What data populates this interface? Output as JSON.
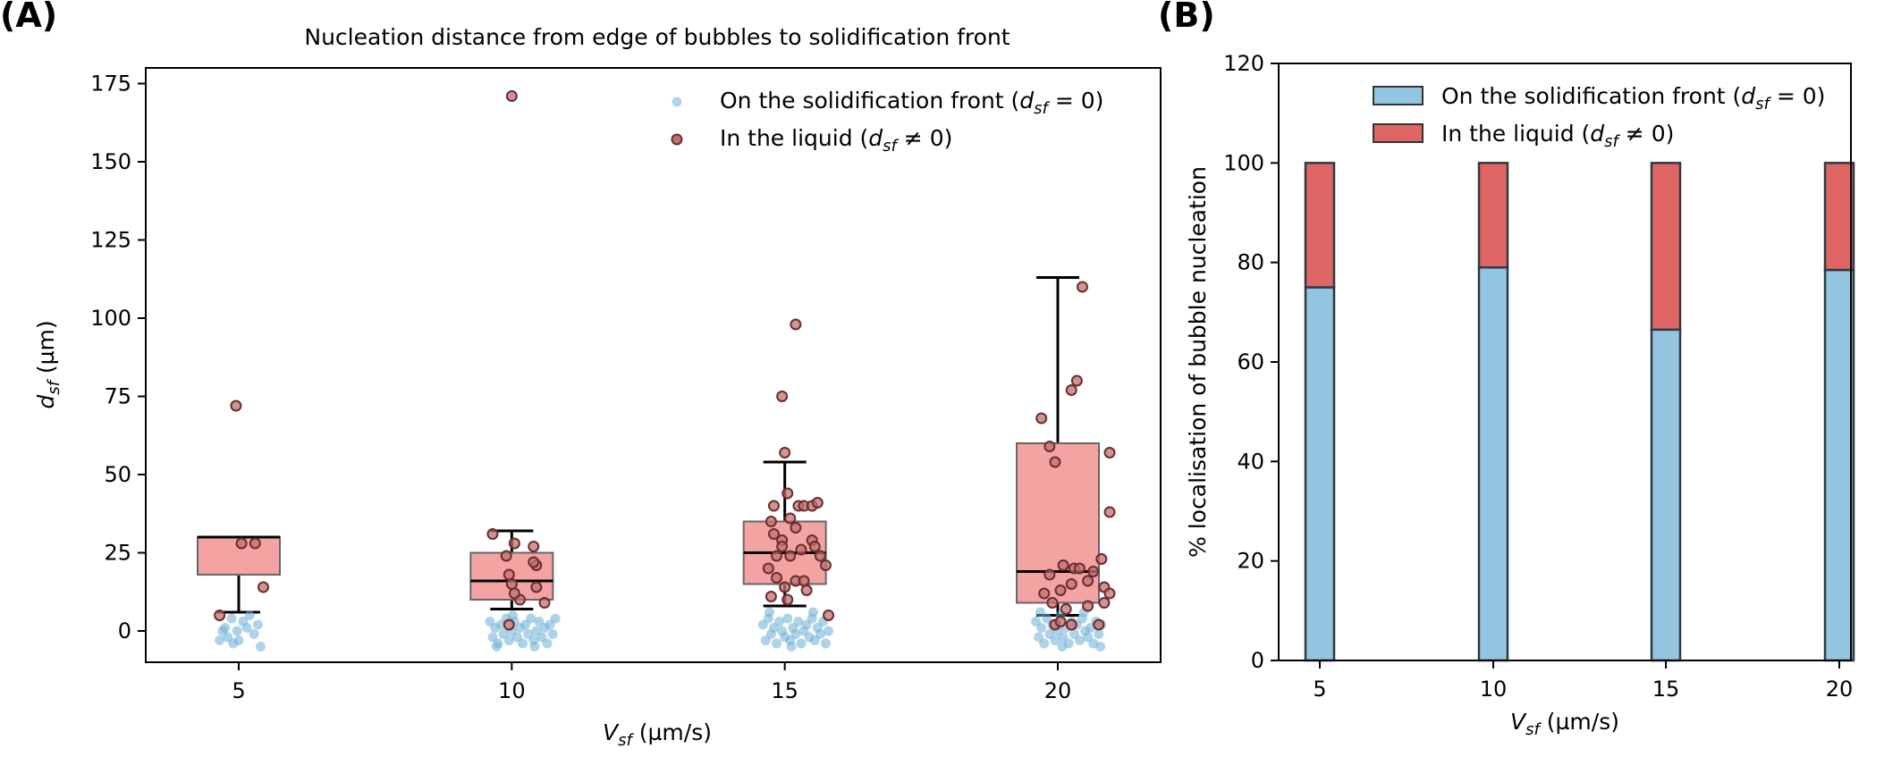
{
  "chart_data": [
    {
      "panel_label": "(A)",
      "type": "box+scatter",
      "title": "Nucleation distance from edge of bubbles to solidification front",
      "xlabel": {
        "var": "V",
        "sub": "sf",
        "unit": " (µm/s)"
      },
      "ylabel": {
        "var": "d",
        "sub": "sf",
        "unit": " (µm)"
      },
      "ylim": [
        -10,
        180
      ],
      "yticks": [
        0,
        25,
        50,
        75,
        100,
        125,
        150,
        175
      ],
      "categories": [
        "5",
        "10",
        "15",
        "20"
      ],
      "legend": {
        "position": "top-right",
        "entries": [
          {
            "text": "On the solidification front (",
            "var": "d",
            "sub": "sf",
            "rel": " = 0)",
            "color": "#6baed6"
          },
          {
            "text": "In the liquid (",
            "var": "d",
            "sub": "sf",
            "rel": " ≠ 0)",
            "color": "#8b3a3a"
          }
        ]
      },
      "boxes": [
        {
          "category": "5",
          "whisker_low": 6,
          "q1": 18,
          "median": 30,
          "q3": 30,
          "whisker_high": 30
        },
        {
          "category": "10",
          "whisker_low": 7,
          "q1": 10,
          "median": 16,
          "q3": 25,
          "whisker_high": 32
        },
        {
          "category": "15",
          "whisker_low": 8,
          "q1": 15,
          "median": 25,
          "q3": 35,
          "whisker_high": 54
        },
        {
          "category": "20",
          "whisker_low": 5,
          "q1": 9,
          "median": 19,
          "q3": 60,
          "whisker_high": 113
        }
      ],
      "series": [
        {
          "name": "On the solidification front (dsf = 0)",
          "color": "#6baed6",
          "points": [
            {
              "x": 4.65,
              "y": -3
            },
            {
              "x": 4.75,
              "y": 1
            },
            {
              "x": 4.8,
              "y": -2
            },
            {
              "x": 4.87,
              "y": 4
            },
            {
              "x": 4.9,
              "y": -4
            },
            {
              "x": 4.97,
              "y": 0
            },
            {
              "x": 5.08,
              "y": 3
            },
            {
              "x": 5.15,
              "y": 1
            },
            {
              "x": 5.2,
              "y": 5
            },
            {
              "x": 5.28,
              "y": -1
            },
            {
              "x": 5.35,
              "y": 2
            },
            {
              "x": 5.4,
              "y": -5
            },
            {
              "x": 4.7,
              "y": 0
            },
            {
              "x": 5.0,
              "y": -3
            },
            {
              "x": 9.6,
              "y": 3
            },
            {
              "x": 9.65,
              "y": -2
            },
            {
              "x": 9.7,
              "y": 1
            },
            {
              "x": 9.75,
              "y": -4
            },
            {
              "x": 9.8,
              "y": 2
            },
            {
              "x": 9.85,
              "y": -1
            },
            {
              "x": 9.9,
              "y": 4
            },
            {
              "x": 9.95,
              "y": -3
            },
            {
              "x": 10.0,
              "y": 0
            },
            {
              "x": 10.05,
              "y": 3
            },
            {
              "x": 10.1,
              "y": -2
            },
            {
              "x": 10.15,
              "y": 1
            },
            {
              "x": 10.2,
              "y": -4
            },
            {
              "x": 10.25,
              "y": 2
            },
            {
              "x": 10.3,
              "y": -1
            },
            {
              "x": 10.35,
              "y": 4
            },
            {
              "x": 10.4,
              "y": -3
            },
            {
              "x": 10.45,
              "y": 0
            },
            {
              "x": 10.5,
              "y": 3
            },
            {
              "x": 10.55,
              "y": -2
            },
            {
              "x": 10.6,
              "y": 1
            },
            {
              "x": 10.65,
              "y": -4
            },
            {
              "x": 10.7,
              "y": 2
            },
            {
              "x": 10.75,
              "y": -1
            },
            {
              "x": 10.8,
              "y": 4
            },
            {
              "x": 9.72,
              "y": -5
            },
            {
              "x": 10.02,
              "y": 5
            },
            {
              "x": 10.42,
              "y": -5
            },
            {
              "x": 14.6,
              "y": 2
            },
            {
              "x": 14.65,
              "y": -3
            },
            {
              "x": 14.7,
              "y": 4
            },
            {
              "x": 14.75,
              "y": -1
            },
            {
              "x": 14.8,
              "y": 1
            },
            {
              "x": 14.85,
              "y": -4
            },
            {
              "x": 14.9,
              "y": 3
            },
            {
              "x": 14.95,
              "y": 0
            },
            {
              "x": 15.0,
              "y": -2
            },
            {
              "x": 15.05,
              "y": 4
            },
            {
              "x": 15.1,
              "y": -3
            },
            {
              "x": 15.15,
              "y": 1
            },
            {
              "x": 15.2,
              "y": -1
            },
            {
              "x": 15.25,
              "y": 3
            },
            {
              "x": 15.3,
              "y": -4
            },
            {
              "x": 15.35,
              "y": 0
            },
            {
              "x": 15.4,
              "y": 2
            },
            {
              "x": 15.45,
              "y": -2
            },
            {
              "x": 15.5,
              "y": 4
            },
            {
              "x": 15.55,
              "y": -3
            },
            {
              "x": 15.6,
              "y": 1
            },
            {
              "x": 15.65,
              "y": -1
            },
            {
              "x": 15.7,
              "y": 3
            },
            {
              "x": 15.75,
              "y": -4
            },
            {
              "x": 15.8,
              "y": 0
            },
            {
              "x": 14.72,
              "y": 6
            },
            {
              "x": 15.12,
              "y": -5
            },
            {
              "x": 15.52,
              "y": 6
            },
            {
              "x": 19.6,
              "y": 3
            },
            {
              "x": 19.65,
              "y": -2
            },
            {
              "x": 19.7,
              "y": 1
            },
            {
              "x": 19.75,
              "y": -4
            },
            {
              "x": 19.8,
              "y": 4
            },
            {
              "x": 19.85,
              "y": -1
            },
            {
              "x": 19.9,
              "y": 2
            },
            {
              "x": 19.95,
              "y": -3
            },
            {
              "x": 20.0,
              "y": 0
            },
            {
              "x": 20.05,
              "y": 5
            },
            {
              "x": 20.1,
              "y": -2
            },
            {
              "x": 20.15,
              "y": 1
            },
            {
              "x": 20.2,
              "y": -4
            },
            {
              "x": 20.25,
              "y": 3
            },
            {
              "x": 20.3,
              "y": -1
            },
            {
              "x": 20.35,
              "y": 2
            },
            {
              "x": 20.4,
              "y": -3
            },
            {
              "x": 20.45,
              "y": 4
            },
            {
              "x": 20.5,
              "y": 0
            },
            {
              "x": 20.55,
              "y": -2
            },
            {
              "x": 20.6,
              "y": 1
            },
            {
              "x": 20.65,
              "y": -4
            },
            {
              "x": 20.7,
              "y": 3
            },
            {
              "x": 20.75,
              "y": -1
            },
            {
              "x": 20.8,
              "y": 2
            },
            {
              "x": 19.68,
              "y": 6
            },
            {
              "x": 20.08,
              "y": -5
            },
            {
              "x": 20.48,
              "y": 6
            },
            {
              "x": 20.78,
              "y": -5
            }
          ]
        },
        {
          "name": "In the liquid (dsf ≠ 0)",
          "color": "#8b3a3a",
          "points": [
            {
              "x": 4.95,
              "y": 72
            },
            {
              "x": 5.3,
              "y": 28
            },
            {
              "x": 5.05,
              "y": 28
            },
            {
              "x": 5.45,
              "y": 14
            },
            {
              "x": 4.65,
              "y": 5
            },
            {
              "x": 10.0,
              "y": 171
            },
            {
              "x": 9.65,
              "y": 31
            },
            {
              "x": 9.9,
              "y": 24
            },
            {
              "x": 10.05,
              "y": 28
            },
            {
              "x": 10.4,
              "y": 27
            },
            {
              "x": 10.45,
              "y": 21
            },
            {
              "x": 9.95,
              "y": 18
            },
            {
              "x": 10.4,
              "y": 22
            },
            {
              "x": 10.0,
              "y": 15
            },
            {
              "x": 10.15,
              "y": 10
            },
            {
              "x": 10.05,
              "y": 12
            },
            {
              "x": 10.45,
              "y": 14
            },
            {
              "x": 10.6,
              "y": 9
            },
            {
              "x": 9.95,
              "y": 2
            },
            {
              "x": 15.2,
              "y": 98
            },
            {
              "x": 14.95,
              "y": 75
            },
            {
              "x": 15.0,
              "y": 57
            },
            {
              "x": 14.8,
              "y": 40
            },
            {
              "x": 15.05,
              "y": 44
            },
            {
              "x": 15.25,
              "y": 40
            },
            {
              "x": 15.35,
              "y": 40
            },
            {
              "x": 15.5,
              "y": 40
            },
            {
              "x": 15.6,
              "y": 41
            },
            {
              "x": 14.75,
              "y": 35
            },
            {
              "x": 14.8,
              "y": 31
            },
            {
              "x": 14.95,
              "y": 29
            },
            {
              "x": 15.1,
              "y": 36
            },
            {
              "x": 15.2,
              "y": 33
            },
            {
              "x": 14.85,
              "y": 24
            },
            {
              "x": 14.95,
              "y": 27
            },
            {
              "x": 15.1,
              "y": 24
            },
            {
              "x": 15.3,
              "y": 26
            },
            {
              "x": 15.5,
              "y": 29
            },
            {
              "x": 15.55,
              "y": 27
            },
            {
              "x": 14.7,
              "y": 20
            },
            {
              "x": 14.85,
              "y": 17
            },
            {
              "x": 15.0,
              "y": 14
            },
            {
              "x": 15.2,
              "y": 16
            },
            {
              "x": 15.35,
              "y": 16
            },
            {
              "x": 15.65,
              "y": 24
            },
            {
              "x": 15.75,
              "y": 21
            },
            {
              "x": 14.75,
              "y": 11
            },
            {
              "x": 15.05,
              "y": 10
            },
            {
              "x": 15.4,
              "y": 13
            },
            {
              "x": 15.8,
              "y": 5
            },
            {
              "x": 20.45,
              "y": 110
            },
            {
              "x": 20.35,
              "y": 80
            },
            {
              "x": 20.25,
              "y": 77
            },
            {
              "x": 19.7,
              "y": 68
            },
            {
              "x": 19.85,
              "y": 59
            },
            {
              "x": 19.95,
              "y": 54
            },
            {
              "x": 20.95,
              "y": 57
            },
            {
              "x": 20.95,
              "y": 38
            },
            {
              "x": 20.8,
              "y": 23
            },
            {
              "x": 20.1,
              "y": 21
            },
            {
              "x": 20.3,
              "y": 20
            },
            {
              "x": 20.4,
              "y": 20
            },
            {
              "x": 19.85,
              "y": 18
            },
            {
              "x": 20.25,
              "y": 15
            },
            {
              "x": 20.55,
              "y": 16
            },
            {
              "x": 20.65,
              "y": 19
            },
            {
              "x": 20.05,
              "y": 13
            },
            {
              "x": 20.85,
              "y": 14
            },
            {
              "x": 20.95,
              "y": 12
            },
            {
              "x": 19.75,
              "y": 12
            },
            {
              "x": 19.9,
              "y": 9
            },
            {
              "x": 20.15,
              "y": 7
            },
            {
              "x": 20.55,
              "y": 8
            },
            {
              "x": 20.85,
              "y": 9
            },
            {
              "x": 19.95,
              "y": 2
            },
            {
              "x": 20.05,
              "y": 3
            },
            {
              "x": 20.25,
              "y": 2
            },
            {
              "x": 20.75,
              "y": 2
            }
          ]
        }
      ]
    },
    {
      "panel_label": "(B)",
      "type": "stacked-bar",
      "xlabel": {
        "var": "V",
        "sub": "sf",
        "unit": " (µm/s)"
      },
      "ylabel": "% localisation of bubble nucleation",
      "ylim": [
        0,
        120
      ],
      "yticks": [
        0,
        20,
        40,
        60,
        80,
        100,
        120
      ],
      "categories": [
        "5",
        "10",
        "15",
        "20"
      ],
      "legend": {
        "position": "top-right",
        "entries": [
          {
            "text": "On the solidification front (",
            "var": "d",
            "sub": "sf",
            "rel": " = 0)",
            "color": "#93c4e0"
          },
          {
            "text": "In the liquid (",
            "var": "d",
            "sub": "sf",
            "rel": " ≠ 0)",
            "color": "#e06666"
          }
        ]
      },
      "series": [
        {
          "name": "On the solidification front (dsf = 0)",
          "color": "#93c4e0",
          "values": [
            75,
            79,
            66.5,
            78.5
          ]
        },
        {
          "name": "In the liquid (dsf ≠ 0)",
          "color": "#e06666",
          "values": [
            25,
            21,
            33.5,
            21.5
          ]
        }
      ]
    }
  ]
}
